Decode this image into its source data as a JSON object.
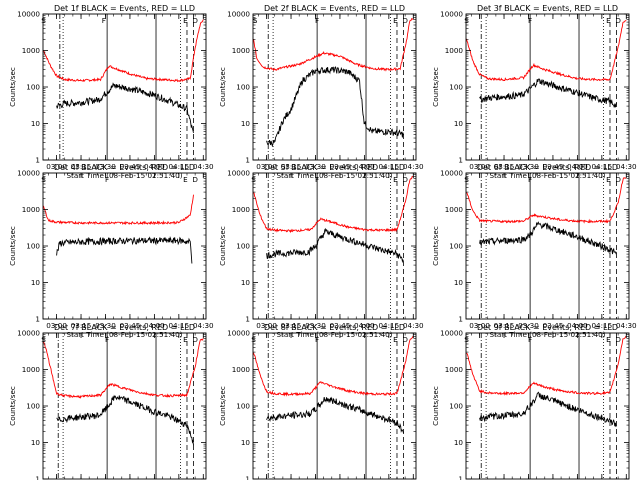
{
  "chart_data": {
    "type": "line",
    "xlabel": "Start Time (08-Feb-15 02:51:40)",
    "ylabel": "Counts/sec",
    "x_ticks": [
      "03:00",
      "03:15",
      "03:30",
      "03:45",
      "04:00",
      "04:15",
      "04:30"
    ],
    "y_ticks": [
      "1",
      "10",
      "100",
      "1000",
      "10000"
    ],
    "y_scale": "log",
    "ylim": [
      1,
      10000
    ],
    "xlim": [
      "02:51:40",
      "04:31:40"
    ],
    "series_names": [
      "Events",
      "LLD"
    ],
    "series_colors": {
      "Events": "#000000",
      "LLD": "#ff0000"
    },
    "panels": [
      {
        "title": "Det 1f BLACK = Events, RED = LLD",
        "marks": {
          "S": "02:52",
          "F": "03:29",
          "E": "04:19",
          "D": "04:25"
        },
        "vlines_solid": [
          "03:31",
          "04:01"
        ],
        "vlines_dashdot": [
          "03:02"
        ],
        "vlines_dotted": [
          "03:04",
          "04:16"
        ],
        "vlines_dashed": [
          "04:20",
          "04:24"
        ],
        "lld": {
          "t": [
            "02:52",
            "02:56",
            "03:00",
            "03:05",
            "03:15",
            "03:27",
            "03:32",
            "03:38",
            "03:45",
            "03:55",
            "04:05",
            "04:15",
            "04:22",
            "04:25",
            "04:28",
            "04:30"
          ],
          "v": [
            1000,
            400,
            200,
            160,
            150,
            160,
            380,
            300,
            230,
            170,
            160,
            150,
            170,
            1200,
            5000,
            7000
          ]
        },
        "events": {
          "t": [
            "03:00",
            "03:05",
            "03:15",
            "03:26",
            "03:29",
            "03:35",
            "03:45",
            "04:00",
            "04:10",
            "04:20",
            "04:24"
          ],
          "v": [
            30,
            35,
            38,
            45,
            60,
            110,
            90,
            60,
            40,
            25,
            5
          ]
        }
      },
      {
        "title": "Det 2f BLACK = Events, RED = LLD",
        "marks": {
          "S": "02:53",
          "F": "03:31",
          "E": "04:19",
          "D": "04:25"
        },
        "vlines_solid": [
          "03:31",
          "04:01"
        ],
        "vlines_dashdot": [
          "03:01"
        ],
        "vlines_dotted": [
          "03:04",
          "04:16"
        ],
        "vlines_dashed": [
          "04:20",
          "04:24"
        ],
        "lld": {
          "t": [
            "02:52",
            "02:54",
            "02:58",
            "03:05",
            "03:20",
            "03:35",
            "03:45",
            "03:55",
            "04:05",
            "04:15",
            "04:22",
            "04:26",
            "04:28",
            "04:30"
          ],
          "v": [
            2000,
            600,
            350,
            300,
            420,
            850,
            700,
            420,
            320,
            300,
            320,
            2000,
            7000,
            7000
          ]
        },
        "events": {
          "t": [
            "03:00",
            "03:05",
            "03:10",
            "03:15",
            "03:22",
            "03:30",
            "03:40",
            "03:50",
            "03:57",
            "04:00",
            "04:05",
            "04:15",
            "04:24"
          ],
          "v": [
            3,
            3,
            12,
            25,
            150,
            280,
            300,
            260,
            150,
            10,
            6,
            6,
            5
          ]
        }
      },
      {
        "title": "Det 3f BLACK = Events, RED = LLD",
        "marks": {
          "S": "02:52",
          "F": "03:31",
          "E": "04:19",
          "D": "04:25"
        },
        "vlines_solid": [
          "03:31",
          "04:01"
        ],
        "vlines_dashdot": [
          "03:01"
        ],
        "vlines_dotted": [
          "03:04",
          "04:16"
        ],
        "vlines_dashed": [
          "04:20",
          "04:24"
        ],
        "lld": {
          "t": [
            "02:52",
            "02:56",
            "03:00",
            "03:05",
            "03:15",
            "03:27",
            "03:33",
            "03:40",
            "03:50",
            "04:00",
            "04:10",
            "04:20",
            "04:25",
            "04:28",
            "04:30"
          ],
          "v": [
            2000,
            500,
            220,
            170,
            160,
            180,
            400,
            300,
            220,
            170,
            160,
            160,
            1200,
            6000,
            7000
          ]
        },
        "events": {
          "t": [
            "03:00",
            "03:05",
            "03:15",
            "03:26",
            "03:30",
            "03:36",
            "03:45",
            "04:00",
            "04:10",
            "04:20",
            "04:24"
          ],
          "v": [
            45,
            50,
            55,
            60,
            80,
            150,
            110,
            70,
            50,
            40,
            30
          ]
        }
      },
      {
        "title": "Det 4f BLACK = Events, RED = LLD",
        "marks": {
          "S": "02:52",
          "F": "03:31",
          "E": "04:19",
          "D": "04:25"
        },
        "vlines_solid": [],
        "vlines_dashdot": [],
        "vlines_dotted": [],
        "vlines_dashed": [],
        "lld": {
          "t": [
            "02:52",
            "02:55",
            "03:00",
            "03:15",
            "03:30",
            "03:45",
            "04:00",
            "04:15",
            "04:22",
            "04:24"
          ],
          "v": [
            1200,
            500,
            450,
            430,
            430,
            430,
            430,
            440,
            700,
            2500
          ]
        },
        "events": {
          "t": [
            "03:00",
            "03:02",
            "03:15",
            "03:30",
            "03:45",
            "04:00",
            "04:15",
            "04:22",
            "04:23"
          ],
          "v": [
            60,
            120,
            130,
            135,
            140,
            140,
            140,
            130,
            40
          ]
        }
      },
      {
        "title": "Det 5f BLACK = Events, RED = LLD",
        "marks": {
          "S": "02:52",
          "F": "03:31",
          "E": "04:19",
          "D": "04:25"
        },
        "vlines_solid": [
          "03:31",
          "04:01"
        ],
        "vlines_dashdot": [
          "03:01"
        ],
        "vlines_dotted": [
          "03:04",
          "04:16"
        ],
        "vlines_dashed": [
          "04:20",
          "04:24"
        ],
        "lld": {
          "t": [
            "02:52",
            "02:56",
            "03:00",
            "03:05",
            "03:15",
            "03:27",
            "03:33",
            "03:40",
            "03:50",
            "04:00",
            "04:10",
            "04:20",
            "04:25",
            "04:28",
            "04:30"
          ],
          "v": [
            3000,
            700,
            300,
            270,
            260,
            280,
            550,
            450,
            330,
            280,
            270,
            280,
            1500,
            7000,
            8000
          ]
        },
        "events": {
          "t": [
            "03:00",
            "03:05",
            "03:15",
            "03:26",
            "03:30",
            "03:36",
            "03:45",
            "04:00",
            "04:10",
            "04:20",
            "04:24"
          ],
          "v": [
            55,
            60,
            65,
            70,
            100,
            250,
            180,
            110,
            80,
            60,
            40
          ]
        }
      },
      {
        "title": "Det 6f BLACK = Events, RED = LLD",
        "marks": {
          "S": "02:52",
          "F": "03:31",
          "E": "04:19",
          "D": "04:25"
        },
        "vlines_solid": [
          "03:31",
          "04:01"
        ],
        "vlines_dashdot": [
          "03:01"
        ],
        "vlines_dotted": [
          "03:04",
          "04:16"
        ],
        "vlines_dashed": [
          "04:20",
          "04:24"
        ],
        "lld": {
          "t": [
            "02:52",
            "02:56",
            "03:00",
            "03:05",
            "03:15",
            "03:27",
            "03:33",
            "03:40",
            "03:50",
            "04:00",
            "04:10",
            "04:20",
            "04:25",
            "04:28",
            "04:30"
          ],
          "v": [
            3000,
            900,
            500,
            480,
            470,
            480,
            700,
            620,
            520,
            480,
            470,
            480,
            1500,
            7000,
            8000
          ]
        },
        "events": {
          "t": [
            "03:00",
            "03:05",
            "03:15",
            "03:26",
            "03:30",
            "03:36",
            "03:45",
            "04:00",
            "04:10",
            "04:20",
            "04:24"
          ],
          "v": [
            120,
            130,
            140,
            150,
            180,
            400,
            300,
            180,
            120,
            80,
            60
          ]
        }
      },
      {
        "title": "Det 7f BLACK = Events, RED = LLD",
        "marks": {
          "S": "02:52",
          "F": "03:31",
          "E": "04:19",
          "D": "04:25"
        },
        "vlines_solid": [
          "03:31",
          "04:01"
        ],
        "vlines_dashdot": [
          "03:01"
        ],
        "vlines_dotted": [
          "03:04",
          "04:16"
        ],
        "vlines_dashed": [
          "04:20",
          "04:24"
        ],
        "lld": {
          "t": [
            "02:52",
            "02:54",
            "02:57",
            "03:00",
            "03:05",
            "03:15",
            "03:27",
            "03:33",
            "03:40",
            "03:50",
            "04:00",
            "04:10",
            "04:20",
            "04:25",
            "04:28",
            "04:30"
          ],
          "v": [
            6000,
            3000,
            800,
            220,
            190,
            180,
            200,
            400,
            320,
            240,
            200,
            190,
            200,
            1200,
            6000,
            7000
          ]
        },
        "events": {
          "t": [
            "03:00",
            "03:05",
            "03:15",
            "03:26",
            "03:30",
            "03:36",
            "03:45",
            "04:00",
            "04:10",
            "04:20",
            "04:24"
          ],
          "v": [
            40,
            45,
            50,
            55,
            80,
            180,
            130,
            70,
            50,
            30,
            10
          ]
        }
      },
      {
        "title": "Det 8f BLACK = Events, RED = LLD",
        "marks": {
          "S": "02:52",
          "F": "03:31",
          "E": "04:19",
          "D": "04:25"
        },
        "vlines_solid": [
          "03:31",
          "04:01"
        ],
        "vlines_dashdot": [
          "03:01"
        ],
        "vlines_dotted": [
          "03:04",
          "04:16"
        ],
        "vlines_dashed": [
          "04:20",
          "04:24"
        ],
        "lld": {
          "t": [
            "02:52",
            "02:56",
            "03:00",
            "03:05",
            "03:15",
            "03:27",
            "03:33",
            "03:40",
            "03:50",
            "04:00",
            "04:10",
            "04:20",
            "04:25",
            "04:28",
            "04:30"
          ],
          "v": [
            3000,
            700,
            250,
            220,
            210,
            220,
            450,
            350,
            260,
            220,
            210,
            220,
            1400,
            7000,
            8000
          ]
        },
        "events": {
          "t": [
            "03:00",
            "03:05",
            "03:15",
            "03:26",
            "03:30",
            "03:36",
            "03:45",
            "04:00",
            "04:10",
            "04:20",
            "04:24"
          ],
          "v": [
            45,
            50,
            55,
            60,
            80,
            160,
            120,
            70,
            50,
            35,
            20
          ]
        }
      },
      {
        "title": "Det 9f BLACK = Events, RED = LLD",
        "marks": {
          "S": "02:52",
          "F": "03:31",
          "E": "04:19",
          "D": "04:25"
        },
        "vlines_solid": [
          "03:31",
          "04:01"
        ],
        "vlines_dashdot": [
          "03:01"
        ],
        "vlines_dotted": [
          "03:04",
          "04:16"
        ],
        "vlines_dashed": [
          "04:20",
          "04:24"
        ],
        "lld": {
          "t": [
            "02:52",
            "02:56",
            "03:00",
            "03:05",
            "03:15",
            "03:27",
            "03:33",
            "03:40",
            "03:50",
            "04:00",
            "04:10",
            "04:20",
            "04:25",
            "04:28",
            "04:30"
          ],
          "v": [
            3000,
            700,
            260,
            230,
            220,
            230,
            420,
            330,
            260,
            230,
            220,
            230,
            1400,
            7000,
            8000
          ]
        },
        "events": {
          "t": [
            "03:00",
            "03:05",
            "03:15",
            "03:26",
            "03:30",
            "03:36",
            "03:45",
            "04:00",
            "04:10",
            "04:20",
            "04:24"
          ],
          "v": [
            45,
            50,
            55,
            60,
            90,
            200,
            140,
            80,
            55,
            40,
            30
          ]
        }
      }
    ]
  }
}
